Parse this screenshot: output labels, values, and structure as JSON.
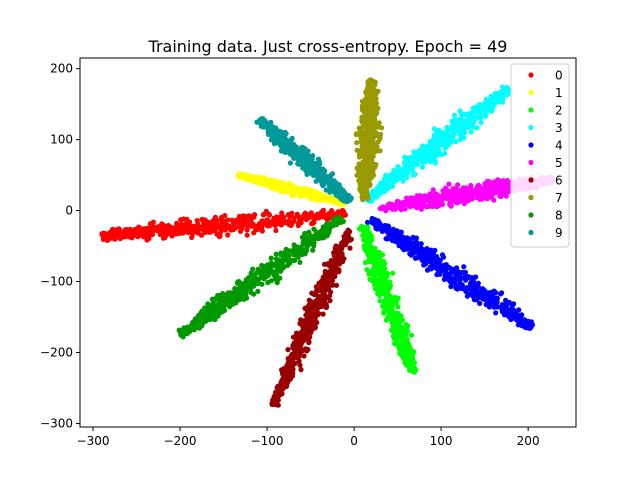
{
  "chart_data": {
    "type": "scatter",
    "title": "Training data. Just cross-entropy. Epoch = 49",
    "xlabel": "",
    "ylabel": "",
    "xlim": [
      -315,
      255
    ],
    "ylim": [
      -305,
      215
    ],
    "xticks": [
      -300,
      -200,
      -100,
      0,
      100,
      200
    ],
    "yticks": [
      -300,
      -200,
      -100,
      0,
      100,
      200
    ],
    "xtick_labels": [
      "−300",
      "−200",
      "−100",
      "0",
      "100",
      "200"
    ],
    "ytick_labels": [
      "−300",
      "−200",
      "−100",
      "0",
      "100",
      "200"
    ],
    "grid": false,
    "legend_position": "upper-right",
    "series": [
      {
        "name": "0",
        "color": "#ff0000",
        "tip": [
          -290,
          -36
        ],
        "root": [
          -10,
          -5
        ],
        "spread": 11
      },
      {
        "name": "1",
        "color": "#ffff00",
        "tip": [
          -133,
          50
        ],
        "root": [
          -10,
          10
        ],
        "spread": 5
      },
      {
        "name": "2",
        "color": "#00ff00",
        "tip": [
          68,
          -228
        ],
        "root": [
          10,
          -20
        ],
        "spread": 9
      },
      {
        "name": "3",
        "color": "#00ffff",
        "tip": [
          178,
          172
        ],
        "root": [
          15,
          15
        ],
        "spread": 11
      },
      {
        "name": "4",
        "color": "#0000ff",
        "tip": [
          205,
          -165
        ],
        "root": [
          18,
          -12
        ],
        "spread": 11
      },
      {
        "name": "5",
        "color": "#ff00ff",
        "tip": [
          228,
          44
        ],
        "root": [
          30,
          3
        ],
        "spread": 10
      },
      {
        "name": "6",
        "color": "#990000",
        "tip": [
          -93,
          -275
        ],
        "root": [
          -5,
          -28
        ],
        "spread": 9
      },
      {
        "name": "7",
        "color": "#999900",
        "tip": [
          20,
          185
        ],
        "root": [
          12,
          15
        ],
        "spread": 10
      },
      {
        "name": "8",
        "color": "#009900",
        "tip": [
          -200,
          -175
        ],
        "root": [
          -15,
          -12
        ],
        "spread": 11
      },
      {
        "name": "9",
        "color": "#009999",
        "tip": [
          -108,
          128
        ],
        "root": [
          -5,
          12
        ],
        "spread": 9
      }
    ]
  }
}
